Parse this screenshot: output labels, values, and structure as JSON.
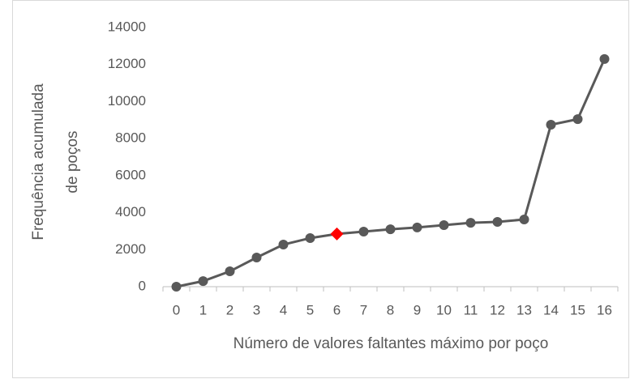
{
  "chart_data": {
    "type": "line",
    "xlabel": "Número de valores faltantes máximo por poço",
    "ylabel": [
      "Frequência acumulada",
      "de poços"
    ],
    "categories": [
      "0",
      "1",
      "2",
      "3",
      "4",
      "5",
      "6",
      "7",
      "8",
      "9",
      "10",
      "11",
      "12",
      "13",
      "14",
      "15",
      "16"
    ],
    "series": [
      {
        "color": "#595959",
        "values": [
          0,
          300,
          830,
          1575,
          2275,
          2625,
          2850,
          2975,
          3100,
          3200,
          3325,
          3450,
          3500,
          3630,
          8750,
          9050,
          12300
        ],
        "point_colors": [
          "#595959",
          "#595959",
          "#595959",
          "#595959",
          "#595959",
          "#595959",
          "#ff0000",
          "#595959",
          "#595959",
          "#595959",
          "#595959",
          "#595959",
          "#595959",
          "#595959",
          "#595959",
          "#595959",
          "#595959"
        ],
        "point_markers": [
          "circle",
          "circle",
          "circle",
          "circle",
          "circle",
          "circle",
          "diamond",
          "circle",
          "circle",
          "circle",
          "circle",
          "circle",
          "circle",
          "circle",
          "circle",
          "circle",
          "circle"
        ]
      }
    ],
    "ylim": [
      0,
      14000
    ],
    "yticks": [
      0,
      2000,
      4000,
      6000,
      8000,
      10000,
      12000,
      14000
    ],
    "grid": false
  }
}
